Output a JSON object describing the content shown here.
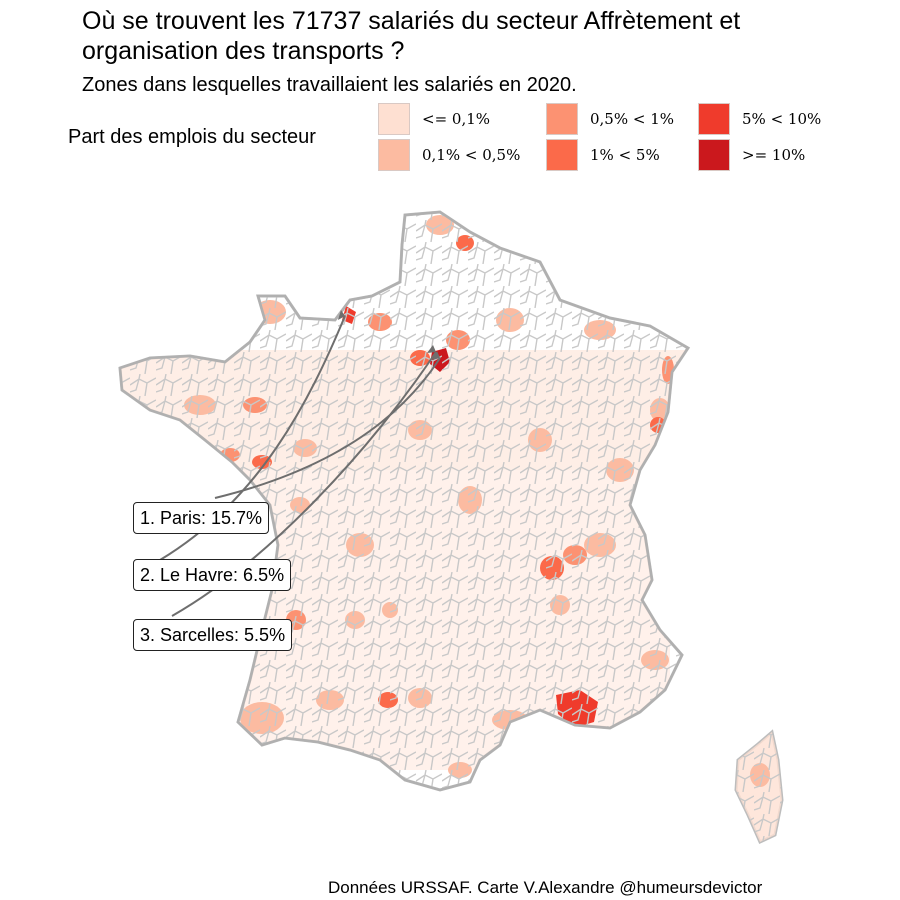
{
  "title": "Où se trouvent les 71737 salariés du secteur Affrètement et organisation des transports ?",
  "subtitle": "Zones dans lesquelles travaillaient les salariés en 2020.",
  "legend": {
    "title": "Part des emplois du secteur",
    "items": [
      {
        "label": "<= 0,1%",
        "color": "#fee0d2"
      },
      {
        "label": "0,1% < 0,5%",
        "color": "#fcbba1"
      },
      {
        "label": "0,5% < 1%",
        "color": "#fc9272"
      },
      {
        "label": "1% < 5%",
        "color": "#fb6a4a"
      },
      {
        "label": "5% < 10%",
        "color": "#ef3b2c"
      },
      {
        "label": ">= 10%",
        "color": "#cb181d"
      }
    ]
  },
  "callouts": [
    {
      "rank_label": "1. Paris: 15.7%"
    },
    {
      "rank_label": "2. Le Havre: 6.5%"
    },
    {
      "rank_label": "3. Sarcelles: 5.5%"
    }
  ],
  "caption": "Données URSSAF. Carte V.Alexandre @humeursdevictor"
}
